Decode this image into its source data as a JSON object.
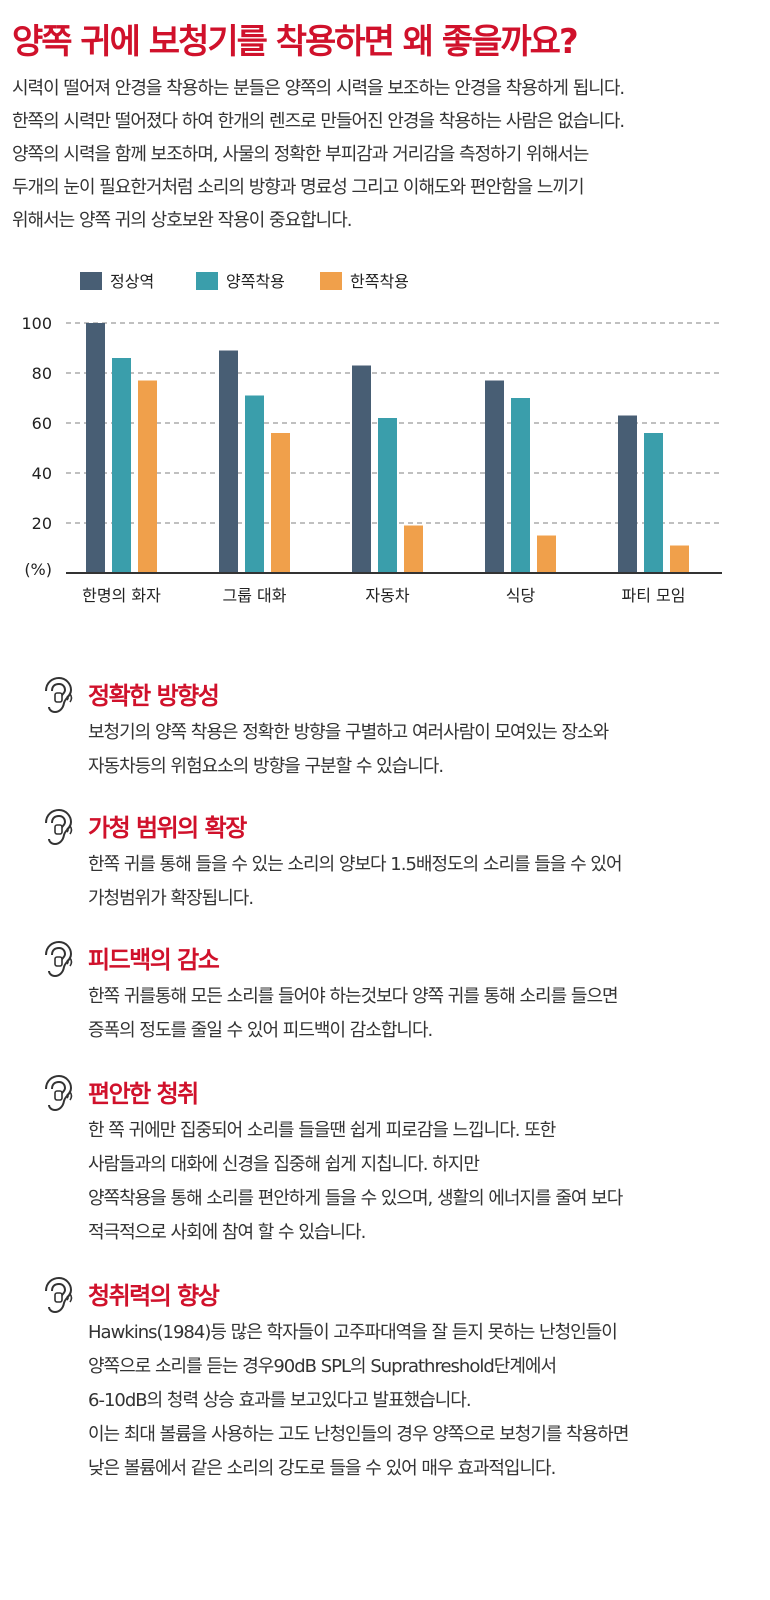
{
  "title": "양쪽 귀에 보청기를 착용하면 왜 좋을까요?",
  "intro": [
    "시력이 떨어져 안경을 착용하는 분들은 양쪽의 시력을 보조하는 안경을 착용하게 됩니다.",
    "한쪽의 시력만 떨어졌다 하여 한개의 렌즈로 만들어진 안경을 착용하는 사람은 없습니다.",
    "양쪽의 시력을 함께 보조하며, 사물의 정확한 부피감과 거리감을 측정하기 위해서는",
    "두개의 눈이 필요한거처럼 소리의 방향과 명료성 그리고 이해도와 편안함을 느끼기",
    "위해서는 양쪽 귀의 상호보완 작용이 중요합니다."
  ],
  "colors": {
    "title": "#d0112b",
    "normal": "#485e74",
    "both": "#3a9eab",
    "one": "#f0a04b",
    "grid": "#9a9a9a"
  },
  "chart_data": {
    "type": "bar",
    "categories": [
      "한명의 화자",
      "그룹 대화",
      "자동차",
      "식당",
      "파티 모임"
    ],
    "series": [
      {
        "name": "정상역",
        "values": [
          100,
          89,
          83,
          77,
          63
        ]
      },
      {
        "name": "양쪽착용",
        "values": [
          86,
          71,
          62,
          70,
          56
        ]
      },
      {
        "name": "한쪽착용",
        "values": [
          77,
          56,
          19,
          15,
          11
        ]
      }
    ],
    "yticks": [
      20,
      40,
      60,
      80,
      100
    ],
    "ylabel": "(%)",
    "ylim": [
      0,
      100
    ],
    "legend_position": "top-left",
    "grid": true
  },
  "sections": [
    {
      "title": "정확한 방향성",
      "icon": "ear-icon",
      "lines": [
        "보청기의 양쪽 착용은 정확한 방향을 구별하고 여러사람이 모여있는 장소와",
        "자동차등의 위험요소의 방향을 구분할 수 있습니다."
      ]
    },
    {
      "title": "가청 범위의 확장",
      "icon": "ear-icon",
      "lines": [
        "한쪽 귀를 통해 들을 수 있는 소리의 양보다 1.5배정도의 소리를 들을 수 있어",
        "가청범위가 확장됩니다."
      ]
    },
    {
      "title": "피드백의 감소",
      "icon": "ear-icon",
      "lines": [
        "한쪽 귀를통해 모든 소리를 들어야 하는것보다 양쪽 귀를 통해 소리를 들으면",
        "증폭의 정도를 줄일 수 있어 피드백이 감소합니다."
      ]
    },
    {
      "title": "편안한 청취",
      "icon": "ear-icon",
      "lines": [
        "한 쪽 귀에만 집중되어 소리를 들을땐 쉽게 피로감을 느낍니다. 또한",
        "사람들과의 대화에 신경을 집중해 쉽게 지칩니다. 하지만",
        "양쪽착용을 통해 소리를 편안하게 들을 수 있으며, 생활의 에너지를 줄여 보다",
        "적극적으로 사회에 참여 할 수 있습니다."
      ]
    },
    {
      "title": "청취력의 향상",
      "icon": "ear-icon",
      "lines": [
        "Hawkins(1984)등 많은 학자들이 고주파대역을 잘 듣지 못하는 난청인들이",
        "양쪽으로 소리를 듣는 경우90dB SPL의 Suprathreshold단계에서",
        "6-10dB의 청력 상승 효과를 보고있다고 발표했습니다.",
        "이는 최대 볼륨을 사용하는 고도 난청인들의 경우 양쪽으로 보청기를 착용하면",
        "낮은 볼륨에서 같은 소리의 강도로 들을 수 있어 매우 효과적입니다."
      ]
    }
  ]
}
